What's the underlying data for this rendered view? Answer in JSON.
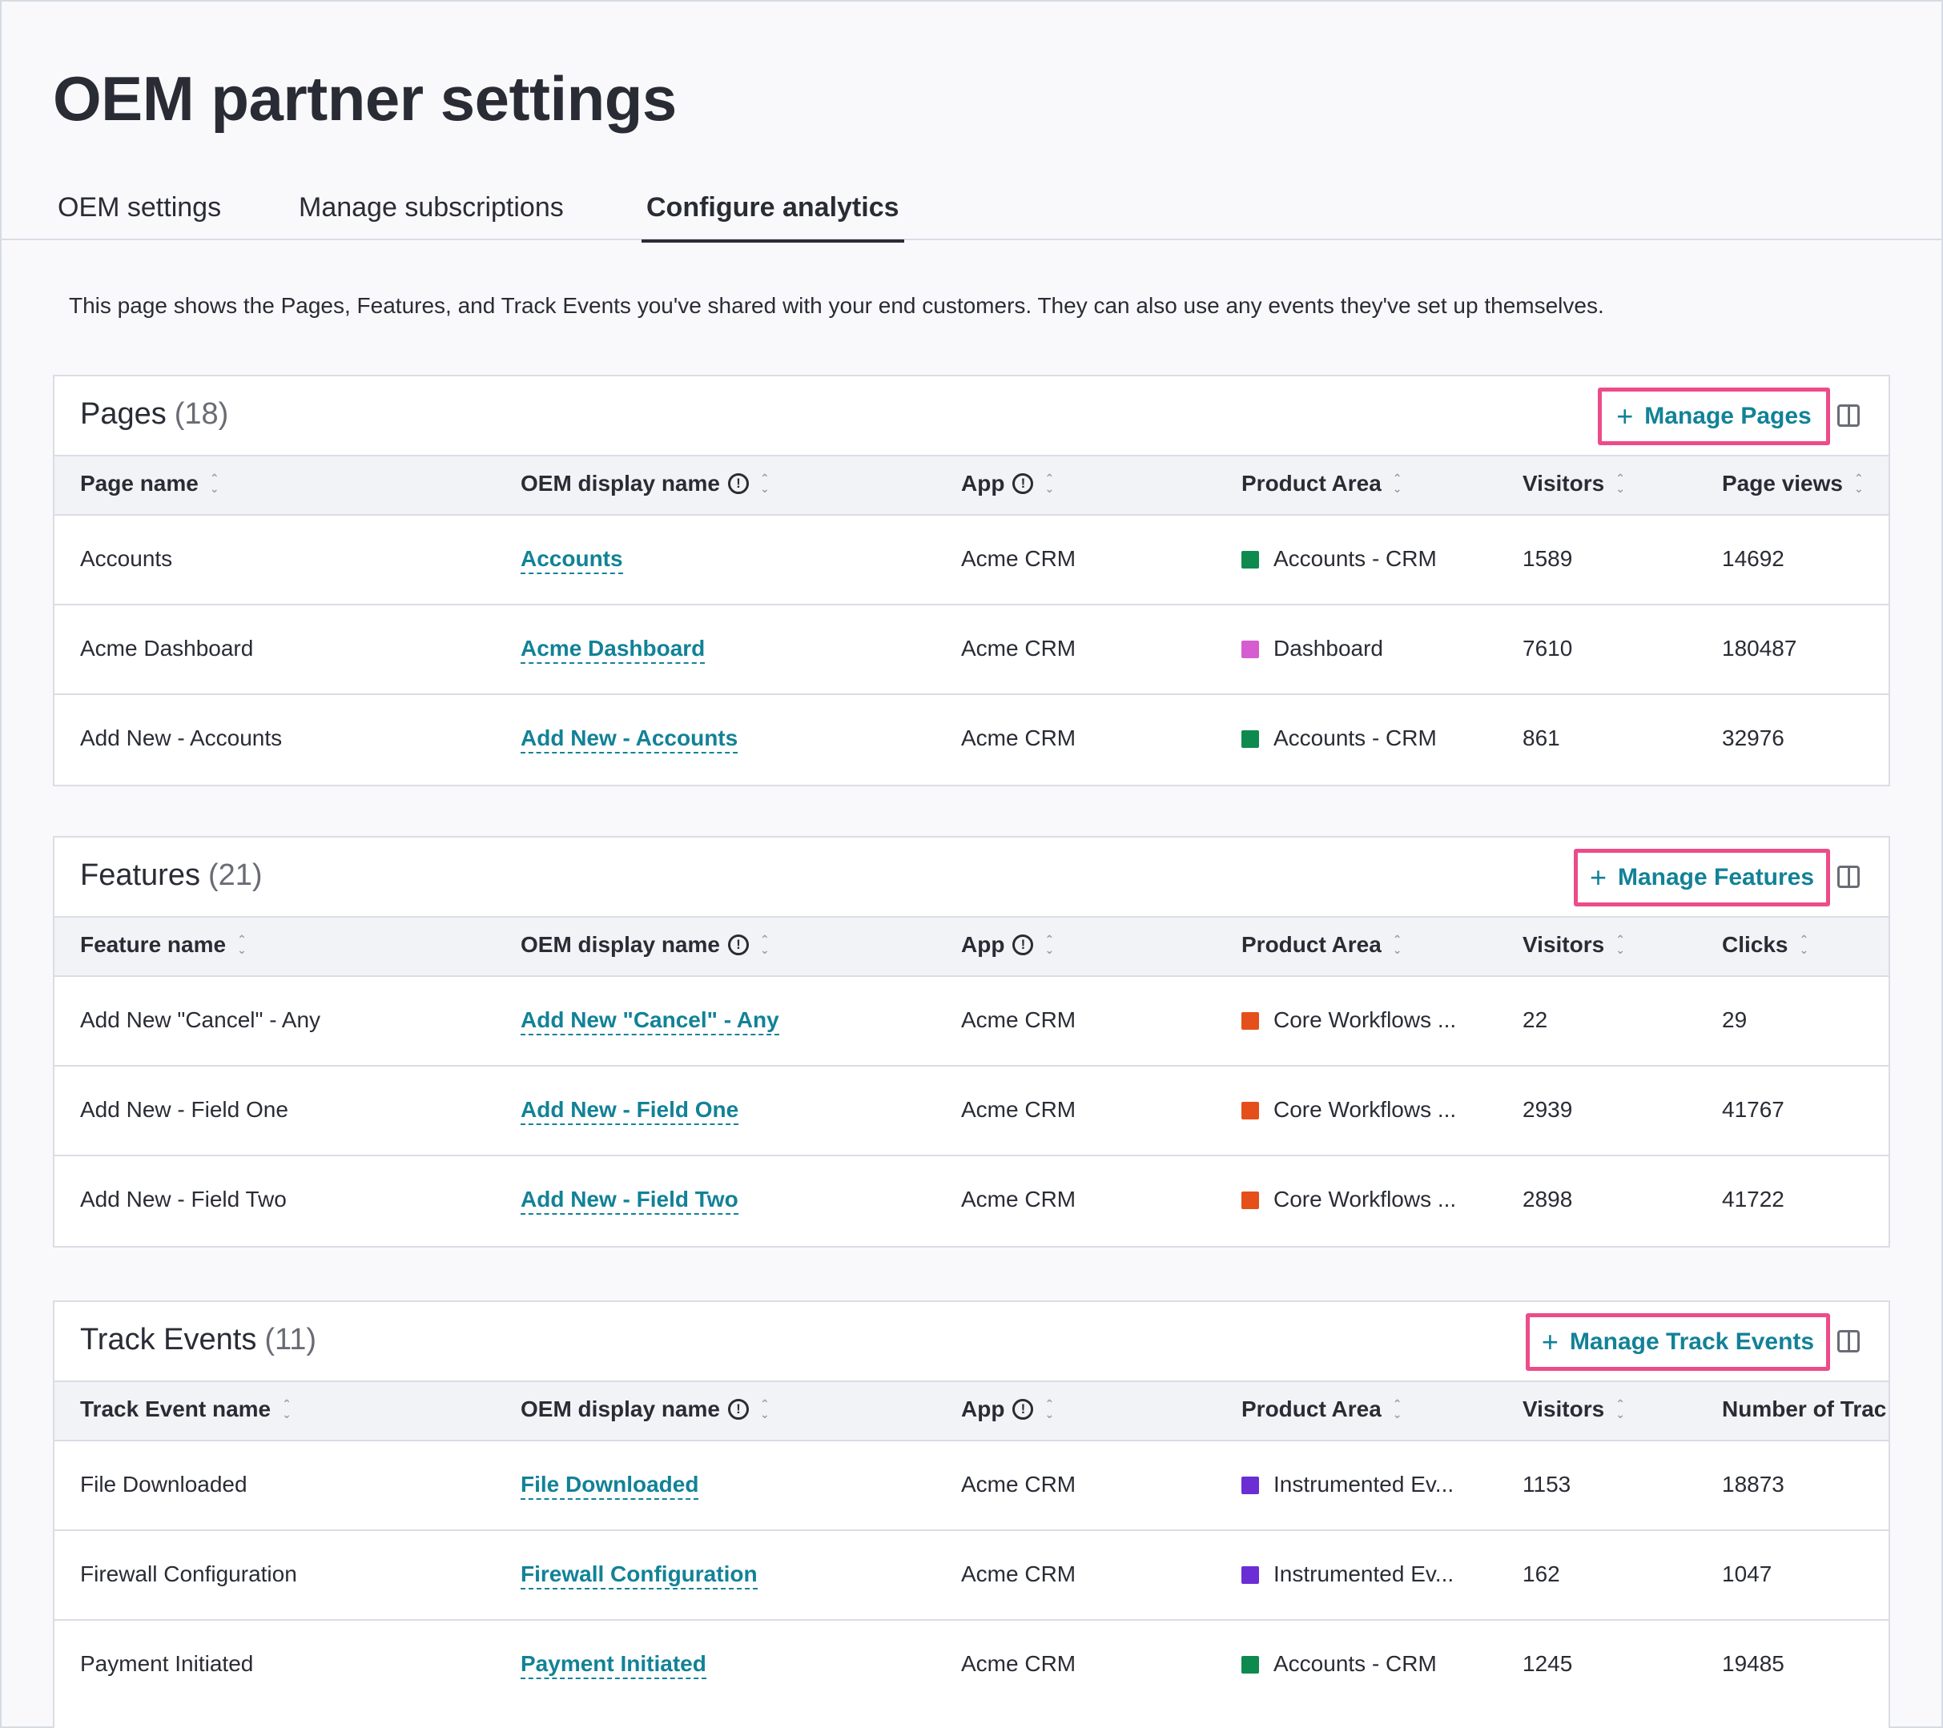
{
  "page": {
    "title": "OEM partner settings",
    "description": "This page shows the Pages, Features, and Track Events you've shared with your end customers. They can also use any events they've set up themselves."
  },
  "tabs": [
    {
      "label": "OEM settings"
    },
    {
      "label": "Manage subscriptions"
    },
    {
      "label": "Configure analytics",
      "active": true
    }
  ],
  "colors": {
    "accent": "#128297",
    "highlight": "#ec4c8a",
    "area_green": "#0f8a4f",
    "area_pink": "#d65dd0",
    "area_orange": "#e5501a",
    "area_purple": "#6b2ed4"
  },
  "sections": {
    "pages": {
      "title": "Pages",
      "count": "(18)",
      "manage_label": "Manage Pages",
      "headers": [
        "Page name",
        "OEM display name",
        "App",
        "Product Area",
        "Visitors",
        "Page views"
      ],
      "rows": [
        {
          "name": "Accounts",
          "display": "Accounts",
          "app": "Acme CRM",
          "area": "Accounts - CRM",
          "area_color": "#0f8a4f",
          "visitors": "1589",
          "metric": "14692"
        },
        {
          "name": "Acme Dashboard",
          "display": "Acme Dashboard",
          "app": "Acme CRM",
          "area": "Dashboard",
          "area_color": "#d65dd0",
          "visitors": "7610",
          "metric": "180487"
        },
        {
          "name": "Add New - Accounts",
          "display": "Add New - Accounts",
          "app": "Acme CRM",
          "area": "Accounts - CRM",
          "area_color": "#0f8a4f",
          "visitors": "861",
          "metric": "32976"
        }
      ]
    },
    "features": {
      "title": "Features",
      "count": "(21)",
      "manage_label": "Manage Features",
      "headers": [
        "Feature name",
        "OEM display name",
        "App",
        "Product Area",
        "Visitors",
        "Clicks"
      ],
      "rows": [
        {
          "name": "Add New \"Cancel\" - Any",
          "display": "Add New \"Cancel\" - Any",
          "app": "Acme CRM",
          "area": "Core Workflows ...",
          "area_color": "#e5501a",
          "visitors": "22",
          "metric": "29"
        },
        {
          "name": "Add New - Field One",
          "display": "Add New - Field One",
          "app": "Acme CRM",
          "area": "Core Workflows ...",
          "area_color": "#e5501a",
          "visitors": "2939",
          "metric": "41767"
        },
        {
          "name": "Add New - Field Two",
          "display": "Add New - Field Two",
          "app": "Acme CRM",
          "area": "Core Workflows ...",
          "area_color": "#e5501a",
          "visitors": "2898",
          "metric": "41722"
        }
      ]
    },
    "events": {
      "title": "Track Events",
      "count": "(11)",
      "manage_label": "Manage Track Events",
      "headers": [
        "Track Event name",
        "OEM display name",
        "App",
        "Product Area",
        "Visitors",
        "Number of Trac"
      ],
      "rows": [
        {
          "name": "File Downloaded",
          "display": "File Downloaded",
          "app": "Acme CRM",
          "area": "Instrumented Ev...",
          "area_color": "#6b2ed4",
          "visitors": "1153",
          "metric": "18873"
        },
        {
          "name": "Firewall Configuration",
          "display": "Firewall Configuration",
          "app": "Acme CRM",
          "area": "Instrumented Ev...",
          "area_color": "#6b2ed4",
          "visitors": "162",
          "metric": "1047"
        },
        {
          "name": "Payment Initiated",
          "display": "Payment Initiated",
          "app": "Acme CRM",
          "area": "Accounts - CRM",
          "area_color": "#0f8a4f",
          "visitors": "1245",
          "metric": "19485"
        }
      ]
    }
  }
}
